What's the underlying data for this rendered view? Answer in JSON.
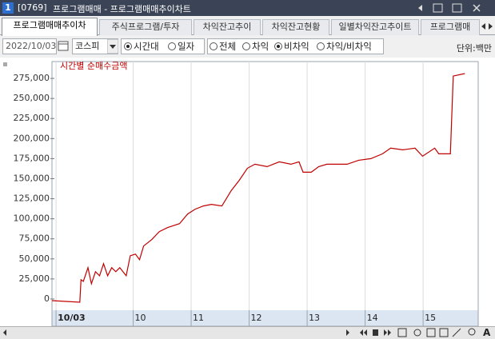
{
  "window": {
    "number": "1",
    "id": "[0769]",
    "title": "프로그램매매 - 프로그램매매추이차트"
  },
  "tabs": [
    "프로그램매매추이차",
    "주식프로그램/투자",
    "차익잔고추이",
    "차익잔고현황",
    "일별차익잔고추이트",
    "프로그램매"
  ],
  "toolbar": {
    "date": "2022/10/03",
    "market": "코스피",
    "view_options": [
      "시간대",
      "일자"
    ],
    "type_options": [
      "전체",
      "차익",
      "비차익",
      "차익/비차익"
    ],
    "unit": "단위:백만"
  },
  "bottom": {
    "font_button": "A"
  },
  "chart_data": {
    "type": "line",
    "x": [
      8.6,
      9.08,
      9.1,
      9.14,
      9.22,
      9.28,
      9.35,
      9.42,
      9.49,
      9.56,
      9.63,
      9.7,
      9.77,
      9.88,
      9.95,
      10.04,
      10.11,
      10.18,
      10.32,
      10.45,
      10.59,
      10.8,
      10.94,
      11.07,
      11.21,
      11.35,
      11.53,
      11.69,
      11.83,
      11.97,
      12.1,
      12.31,
      12.52,
      12.72,
      12.86,
      12.93,
      13.07,
      13.2,
      13.34,
      13.55,
      13.69,
      13.89,
      14.1,
      14.3,
      14.44,
      14.65,
      14.86,
      14.99,
      15.2,
      15.27,
      15.47,
      15.52,
      15.72
    ],
    "series": [
      {
        "name": "시간별 순매수금액",
        "color": "#c00000",
        "values": [
          -2000,
          -4000,
          24000,
          22000,
          39000,
          19000,
          34000,
          29000,
          44000,
          29000,
          39000,
          34000,
          39000,
          29000,
          54000,
          56000,
          49000,
          66000,
          74000,
          84000,
          89000,
          94000,
          106000,
          112000,
          116000,
          118000,
          116000,
          135000,
          148000,
          163000,
          168000,
          165000,
          171000,
          168000,
          171000,
          158000,
          158000,
          165000,
          168000,
          168000,
          168000,
          173000,
          175000,
          181000,
          188000,
          186000,
          188000,
          178000,
          188000,
          181000,
          181000,
          278000,
          281000
        ]
      }
    ],
    "xlim": [
      8.6,
      15.95
    ],
    "xticks": [
      {
        "value": 8.67,
        "label": "10/03"
      },
      10,
      11,
      12,
      13,
      14,
      15
    ],
    "ylim": [
      -14000,
      296000
    ],
    "yticks": [
      0,
      {
        "value": 25000,
        "label": "25,000"
      },
      {
        "value": 50000,
        "label": "50,000"
      },
      {
        "value": 75000,
        "label": "75,000"
      },
      {
        "value": 100000,
        "label": "100,000"
      },
      {
        "value": 125000,
        "label": "125,000"
      },
      {
        "value": 150000,
        "label": "150,000"
      },
      {
        "value": 175000,
        "label": "175,000"
      },
      {
        "value": 200000,
        "label": "200,000"
      },
      {
        "value": 225000,
        "label": "225,000"
      },
      {
        "value": 250000,
        "label": "250,000"
      },
      {
        "value": 275000,
        "label": "275,000"
      }
    ],
    "grid": "x"
  }
}
